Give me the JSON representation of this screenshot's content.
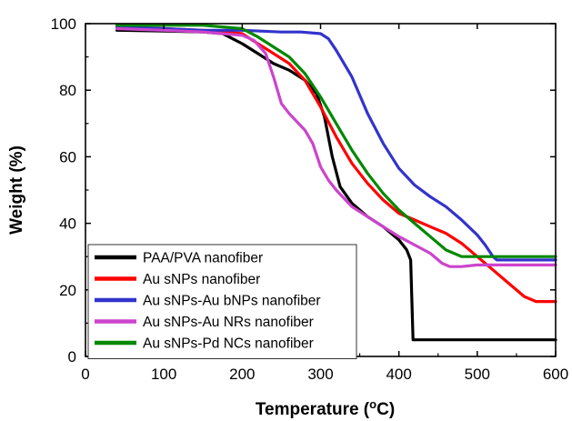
{
  "chart_data": {
    "type": "line",
    "xlabel": "Temperature (",
    "xlabel_unit": "°C",
    "xlabel_close": ")",
    "ylabel": "Weight (%)",
    "xlim": [
      0,
      600
    ],
    "ylim": [
      0,
      100
    ],
    "xticks": [
      0,
      100,
      200,
      300,
      400,
      500,
      600
    ],
    "yticks": [
      0,
      20,
      40,
      60,
      80,
      100
    ],
    "grid": false,
    "legend_position": "bottom-left",
    "series": [
      {
        "name": "PAA/PVA nanofiber",
        "color": "#000000",
        "points": [
          [
            40,
            98
          ],
          [
            100,
            97.8
          ],
          [
            150,
            97.5
          ],
          [
            175,
            97
          ],
          [
            200,
            94
          ],
          [
            220,
            91
          ],
          [
            240,
            88
          ],
          [
            260,
            86
          ],
          [
            280,
            83
          ],
          [
            295,
            79
          ],
          [
            305,
            72
          ],
          [
            315,
            60
          ],
          [
            325,
            51
          ],
          [
            340,
            46
          ],
          [
            360,
            42
          ],
          [
            380,
            39
          ],
          [
            400,
            35
          ],
          [
            410,
            32
          ],
          [
            415,
            29
          ],
          [
            418,
            5
          ],
          [
            430,
            5
          ],
          [
            500,
            5
          ],
          [
            600,
            5
          ]
        ]
      },
      {
        "name": "Au sNPs nanofiber",
        "color": "#ff0000",
        "points": [
          [
            40,
            99
          ],
          [
            100,
            98.5
          ],
          [
            150,
            98
          ],
          [
            200,
            97
          ],
          [
            220,
            94
          ],
          [
            240,
            91
          ],
          [
            260,
            88
          ],
          [
            280,
            83
          ],
          [
            300,
            75
          ],
          [
            320,
            66
          ],
          [
            340,
            58
          ],
          [
            360,
            52
          ],
          [
            380,
            47
          ],
          [
            400,
            43
          ],
          [
            420,
            41
          ],
          [
            440,
            39
          ],
          [
            460,
            37
          ],
          [
            480,
            34
          ],
          [
            500,
            30
          ],
          [
            520,
            26
          ],
          [
            540,
            22
          ],
          [
            560,
            18
          ],
          [
            575,
            16.5
          ],
          [
            600,
            16.5
          ]
        ]
      },
      {
        "name": "Au sNPs-Au bNPs nanofiber",
        "color": "#3333cc",
        "points": [
          [
            40,
            99
          ],
          [
            100,
            98.5
          ],
          [
            150,
            98
          ],
          [
            200,
            98
          ],
          [
            250,
            97.5
          ],
          [
            275,
            97.5
          ],
          [
            300,
            97
          ],
          [
            310,
            95.5
          ],
          [
            320,
            92
          ],
          [
            340,
            84
          ],
          [
            360,
            73
          ],
          [
            380,
            64
          ],
          [
            400,
            56.5
          ],
          [
            420,
            51.5
          ],
          [
            440,
            48
          ],
          [
            460,
            45
          ],
          [
            480,
            41
          ],
          [
            500,
            36.5
          ],
          [
            510,
            33.5
          ],
          [
            520,
            30
          ],
          [
            525,
            29
          ],
          [
            560,
            29
          ],
          [
            600,
            29
          ]
        ]
      },
      {
        "name": "Au sNPs-Au NRs nanofiber",
        "color": "#cc44cc",
        "points": [
          [
            40,
            98.5
          ],
          [
            100,
            98
          ],
          [
            150,
            97.5
          ],
          [
            200,
            96.5
          ],
          [
            215,
            95
          ],
          [
            230,
            91
          ],
          [
            240,
            84
          ],
          [
            250,
            76
          ],
          [
            260,
            73
          ],
          [
            270,
            70.5
          ],
          [
            280,
            68
          ],
          [
            290,
            64
          ],
          [
            300,
            57
          ],
          [
            310,
            53
          ],
          [
            320,
            50
          ],
          [
            340,
            45
          ],
          [
            360,
            42
          ],
          [
            380,
            39
          ],
          [
            400,
            36
          ],
          [
            420,
            33.5
          ],
          [
            440,
            31
          ],
          [
            455,
            28
          ],
          [
            465,
            27
          ],
          [
            480,
            27
          ],
          [
            500,
            27.5
          ],
          [
            600,
            27.5
          ]
        ]
      },
      {
        "name": "Au sNPs-Pd NCs nanofiber",
        "color": "#008800",
        "points": [
          [
            40,
            99.5
          ],
          [
            100,
            99.5
          ],
          [
            150,
            99.5
          ],
          [
            200,
            98.5
          ],
          [
            220,
            96
          ],
          [
            240,
            93
          ],
          [
            260,
            90
          ],
          [
            280,
            85
          ],
          [
            300,
            78
          ],
          [
            320,
            70
          ],
          [
            340,
            62
          ],
          [
            360,
            55
          ],
          [
            380,
            49
          ],
          [
            400,
            44
          ],
          [
            420,
            40
          ],
          [
            440,
            36
          ],
          [
            460,
            32
          ],
          [
            480,
            30
          ],
          [
            500,
            30
          ],
          [
            600,
            30
          ]
        ]
      }
    ]
  }
}
